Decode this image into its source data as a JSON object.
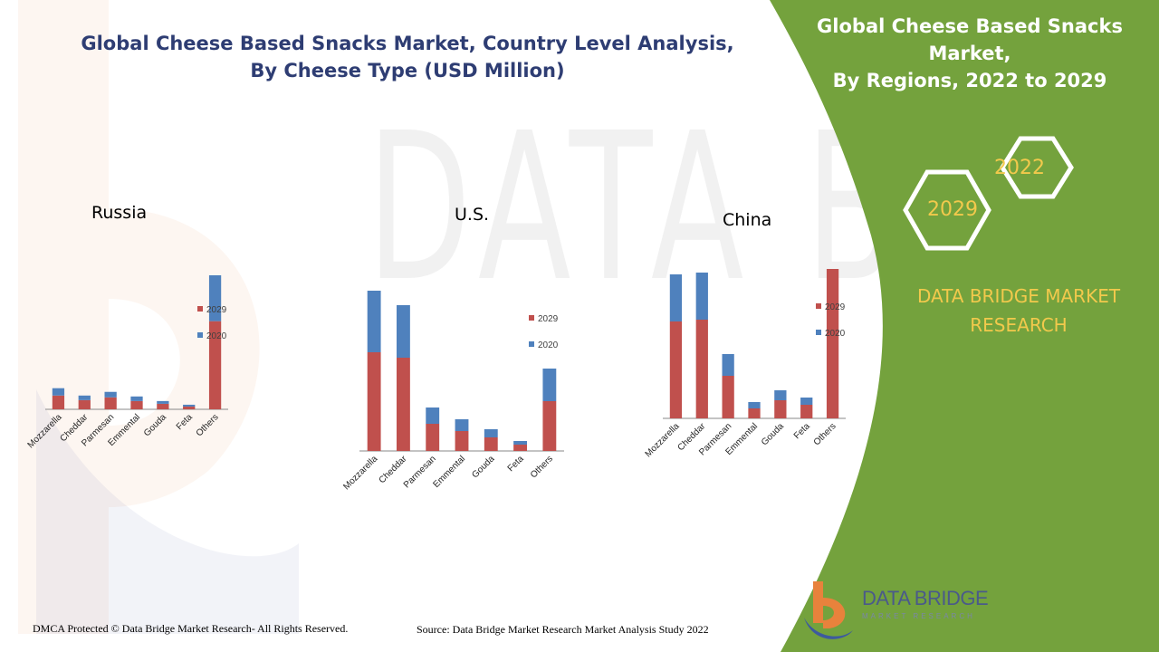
{
  "header": {
    "title_line1": "Global Cheese Based Snacks Market, Country Level Analysis,",
    "title_line2": "By Cheese Type (USD Million)"
  },
  "panel": {
    "title_line1": "Global Cheese Based Snacks Market,",
    "title_line2": "By Regions, 2022 to 2029",
    "year_a": "2022",
    "year_b": "2029",
    "brand_line1": "DATA BRIDGE MARKET",
    "brand_line2": "RESEARCH",
    "color": "#74a23d",
    "accent": "#f2c94c"
  },
  "footer": {
    "left": "DMCA Protected © Data Bridge Market Research- All Rights Reserved.",
    "source": "Source: Data Bridge Market Research Market Analysis Study 2022"
  },
  "logo": {
    "name": "DATA BRIDGE",
    "tagline": "MARKET RESEARCH"
  },
  "series_colors": {
    "2029": "#c0504d",
    "2020": "#4f81bd"
  },
  "chart_data": [
    {
      "type": "bar",
      "stacked": true,
      "title": "Russia",
      "categories": [
        "Mozzarella",
        "Cheddar",
        "Parmesan",
        "Emmental",
        "Gouda",
        "Feta",
        "Others"
      ],
      "series": [
        {
          "name": "2029",
          "values": [
            15,
            10,
            13,
            9,
            6,
            3,
            96
          ]
        },
        {
          "name": "2020",
          "values": [
            8,
            5,
            6,
            5,
            3,
            2,
            50
          ]
        }
      ],
      "legend_position": "right",
      "ylim": [
        0,
        146
      ]
    },
    {
      "type": "bar",
      "stacked": true,
      "title": "U.S.",
      "categories": [
        "Mozzarella",
        "Cheddar",
        "Parmesan",
        "Emmental",
        "Gouda",
        "Feta",
        "Others"
      ],
      "series": [
        {
          "name": "2029",
          "values": [
            109,
            103,
            30,
            22,
            15,
            7,
            55
          ]
        },
        {
          "name": "2020",
          "values": [
            68,
            58,
            18,
            13,
            9,
            4,
            36
          ]
        }
      ],
      "legend_position": "right",
      "ylim": [
        0,
        177
      ]
    },
    {
      "type": "bar",
      "stacked": true,
      "title": "China",
      "categories": [
        "Mozzarella",
        "Cheddar",
        "Parmesan",
        "Emmental",
        "Gouda",
        "Feta",
        "Others"
      ],
      "series": [
        {
          "name": "2029",
          "values": [
            107,
            109,
            47,
            11,
            20,
            15,
            165
          ]
        },
        {
          "name": "2020",
          "values": [
            52,
            52,
            24,
            7,
            11,
            8,
            0
          ]
        }
      ],
      "legend_position": "right",
      "ylim": [
        0,
        165
      ]
    }
  ]
}
